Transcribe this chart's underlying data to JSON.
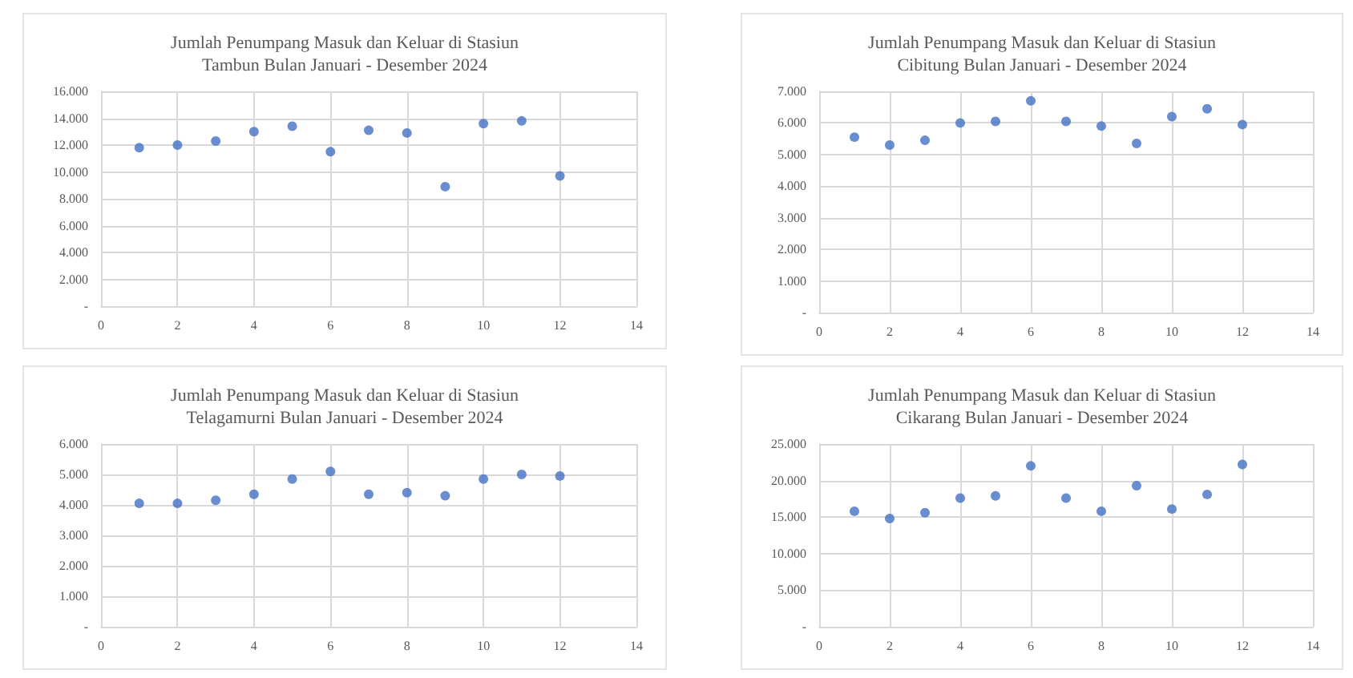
{
  "chart_data": [
    {
      "type": "scatter",
      "title": "Jumlah Penumpang Masuk dan Keluar di Stasiun\nTambun Bulan Januari - Desember 2024",
      "x": [
        1,
        2,
        3,
        4,
        5,
        6,
        7,
        8,
        9,
        10,
        11,
        12
      ],
      "series": [
        {
          "color": "#4472c4",
          "values": [
            11800,
            12000,
            12300,
            13000,
            13400,
            11500,
            13100,
            12900,
            8900,
            13600,
            13800,
            9700
          ]
        }
      ],
      "xlim": [
        0,
        14
      ],
      "xticks": [
        0,
        2,
        4,
        6,
        8,
        10,
        12,
        14
      ],
      "ylim": [
        0,
        16000
      ],
      "yticks": [
        {
          "value": 0,
          "label": "-"
        },
        {
          "value": 2000,
          "label": "2.000"
        },
        {
          "value": 4000,
          "label": "4.000"
        },
        {
          "value": 6000,
          "label": "6.000"
        },
        {
          "value": 8000,
          "label": "8.000"
        },
        {
          "value": 10000,
          "label": "10.000"
        },
        {
          "value": 12000,
          "label": "12.000"
        },
        {
          "value": 14000,
          "label": "14.000"
        },
        {
          "value": 16000,
          "label": "16.000"
        }
      ],
      "grid": true,
      "marker": "circle"
    },
    {
      "type": "scatter",
      "title": "Jumlah Penumpang Masuk dan Keluar di Stasiun\nCibitung Bulan Januari - Desember 2024",
      "x": [
        1,
        2,
        3,
        4,
        5,
        6,
        7,
        8,
        9,
        10,
        11,
        12
      ],
      "series": [
        {
          "color": "#4472c4",
          "values": [
            5550,
            5300,
            5450,
            6000,
            6050,
            6700,
            6050,
            5900,
            5350,
            6200,
            6450,
            5950
          ]
        }
      ],
      "xlim": [
        0,
        14
      ],
      "xticks": [
        0,
        2,
        4,
        6,
        8,
        10,
        12,
        14
      ],
      "ylim": [
        0,
        7000
      ],
      "yticks": [
        {
          "value": 0,
          "label": "-"
        },
        {
          "value": 1000,
          "label": "1.000"
        },
        {
          "value": 2000,
          "label": "2.000"
        },
        {
          "value": 3000,
          "label": "3.000"
        },
        {
          "value": 4000,
          "label": "4.000"
        },
        {
          "value": 5000,
          "label": "5.000"
        },
        {
          "value": 6000,
          "label": "6.000"
        },
        {
          "value": 7000,
          "label": "7.000"
        }
      ],
      "grid": true,
      "marker": "circle"
    },
    {
      "type": "scatter",
      "title": "Jumlah Penumpang Masuk dan Keluar di Stasiun\nTelagamurni Bulan Januari - Desember 2024",
      "x": [
        1,
        2,
        3,
        4,
        5,
        6,
        7,
        8,
        9,
        10,
        11,
        12
      ],
      "series": [
        {
          "color": "#4472c4",
          "values": [
            4050,
            4050,
            4150,
            4350,
            4850,
            5100,
            4350,
            4400,
            4300,
            4850,
            5000,
            4950
          ]
        }
      ],
      "xlim": [
        0,
        14
      ],
      "xticks": [
        0,
        2,
        4,
        6,
        8,
        10,
        12,
        14
      ],
      "ylim": [
        0,
        6000
      ],
      "yticks": [
        {
          "value": 0,
          "label": "-"
        },
        {
          "value": 1000,
          "label": "1.000"
        },
        {
          "value": 2000,
          "label": "2.000"
        },
        {
          "value": 3000,
          "label": "3.000"
        },
        {
          "value": 4000,
          "label": "4.000"
        },
        {
          "value": 5000,
          "label": "5.000"
        },
        {
          "value": 6000,
          "label": "6.000"
        }
      ],
      "grid": true,
      "marker": "circle"
    },
    {
      "type": "scatter",
      "title": "Jumlah Penumpang Masuk dan Keluar di Stasiun\nCikarang Bulan Januari - Desember 2024",
      "x": [
        1,
        2,
        3,
        4,
        5,
        6,
        7,
        8,
        9,
        10,
        11,
        12
      ],
      "series": [
        {
          "color": "#4472c4",
          "values": [
            15800,
            14800,
            15600,
            17600,
            17900,
            22000,
            17600,
            15800,
            19300,
            16100,
            18100,
            22200
          ]
        }
      ],
      "xlim": [
        0,
        14
      ],
      "xticks": [
        0,
        2,
        4,
        6,
        8,
        10,
        12,
        14
      ],
      "ylim": [
        0,
        25000
      ],
      "yticks": [
        {
          "value": 0,
          "label": "-"
        },
        {
          "value": 5000,
          "label": "5.000"
        },
        {
          "value": 10000,
          "label": "10.000"
        },
        {
          "value": 15000,
          "label": "15.000"
        },
        {
          "value": 20000,
          "label": "20.000"
        },
        {
          "value": 25000,
          "label": "25.000"
        }
      ],
      "grid": true,
      "marker": "circle"
    }
  ]
}
